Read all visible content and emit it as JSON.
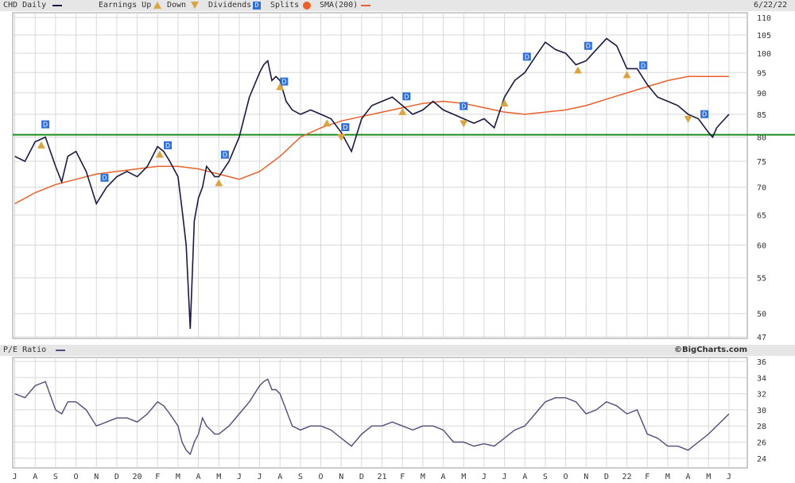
{
  "header": {
    "symbol_label": "CHD Daily",
    "earnings_up_label": "Earnings Up",
    "earnings_down_label": "Down",
    "dividends_label": "Dividends",
    "splits_label": "Splits",
    "sma_label": "SMA(200)",
    "date": "6/22/22"
  },
  "lower_header": {
    "label": "P/E Ratio",
    "copyright": "©BigCharts.com"
  },
  "colors": {
    "price_line": "#1a1a40",
    "sma_line": "#e8602a",
    "support_line": "#1a8c1a",
    "pe_line": "#4d4d7a",
    "dividend_marker": "#2f6fd6",
    "earnings_marker": "#d9a441",
    "grid": "#d8d8d8"
  },
  "chart_data": [
    {
      "type": "line",
      "title": "CHD Daily",
      "yscale": "log",
      "ylim": [
        47,
        110
      ],
      "yticks": [
        47,
        50,
        55,
        60,
        65,
        70,
        75,
        80,
        85,
        90,
        95,
        100,
        105,
        110
      ],
      "month_labels": [
        "J",
        "A",
        "S",
        "O",
        "N",
        "D",
        "20",
        "F",
        "M",
        "A",
        "M",
        "J",
        "J",
        "A",
        "S",
        "O",
        "N",
        "D",
        "21",
        "F",
        "M",
        "A",
        "M",
        "J",
        "J",
        "A",
        "S",
        "O",
        "N",
        "D",
        "22",
        "F",
        "M",
        "A",
        "M",
        "J"
      ],
      "grid": true,
      "series": [
        {
          "name": "CHD Daily",
          "x": [
            0,
            0.5,
            1,
            1.5,
            2,
            2.3,
            2.6,
            3,
            3.5,
            4,
            4.5,
            5,
            5.5,
            6,
            6.5,
            7,
            7.3,
            7.6,
            8,
            8.2,
            8.4,
            8.6,
            8.8,
            9,
            9.2,
            9.4,
            9.6,
            9.8,
            10,
            10.5,
            11,
            11.5,
            12,
            12.2,
            12.4,
            12.6,
            12.8,
            13,
            13.3,
            13.6,
            14,
            14.5,
            15,
            15.5,
            16,
            16.5,
            17,
            17.5,
            18,
            18.5,
            19,
            19.5,
            20,
            20.5,
            21,
            21.5,
            22,
            22.5,
            23,
            23.5,
            24,
            24.5,
            25,
            25.5,
            26,
            26.5,
            27,
            27.5,
            28,
            28.5,
            29,
            29.5,
            30,
            30.5,
            31,
            31.5,
            32,
            32.5,
            33,
            33.5,
            34,
            34.2,
            34.4,
            34.6,
            34.8,
            35
          ],
          "values": [
            76,
            75,
            79,
            80,
            74,
            71,
            76,
            77,
            73,
            67,
            70,
            72,
            73,
            72,
            74,
            78,
            77,
            75,
            72,
            66,
            60,
            48,
            64,
            68,
            70,
            74,
            73,
            72,
            72,
            75,
            80,
            89,
            95,
            97,
            98,
            93,
            94,
            93,
            88,
            86,
            85,
            86,
            85,
            84,
            81,
            77,
            84,
            87,
            88,
            89,
            87,
            85,
            86,
            88,
            86,
            85,
            84,
            83,
            84,
            82,
            89,
            93,
            95,
            99,
            103,
            101,
            100,
            97,
            98,
            101,
            104,
            102,
            96,
            96,
            92,
            89,
            88,
            87,
            85,
            84,
            81,
            80,
            82,
            83,
            84,
            85
          ]
        },
        {
          "name": "SMA(200)",
          "x": [
            0,
            1,
            2,
            3,
            4,
            5,
            6,
            7,
            8,
            9,
            10,
            11,
            12,
            13,
            14,
            15,
            16,
            17,
            18,
            19,
            20,
            21,
            22,
            23,
            24,
            25,
            26,
            27,
            28,
            29,
            30,
            31,
            32,
            33,
            34,
            35
          ],
          "values": [
            67,
            69,
            70.5,
            71.5,
            72.5,
            73,
            73.5,
            74,
            74,
            73.5,
            72.5,
            71.5,
            73,
            76,
            80,
            82,
            83.5,
            84.5,
            85.5,
            86.5,
            87.5,
            88,
            87.5,
            86.5,
            85.5,
            85,
            85.5,
            86,
            87,
            88.5,
            90,
            91.5,
            93,
            94,
            94,
            94
          ]
        },
        {
          "name": "Support level",
          "x": [
            0,
            35
          ],
          "values": [
            80.5,
            80.5
          ]
        }
      ],
      "dividends_x": [
        1.5,
        4.4,
        7.5,
        10.3,
        13.2,
        16.2,
        19.2,
        22,
        25.1,
        28.1,
        30.8,
        33.8
      ],
      "earnings_up_x": [
        1.3,
        7.1,
        10,
        13,
        15.3,
        19,
        24,
        27.6,
        30
      ],
      "earnings_down_x": [
        16,
        22,
        33
      ]
    },
    {
      "type": "line",
      "title": "P/E Ratio",
      "ylim": [
        23,
        36
      ],
      "yticks": [
        24,
        26,
        28,
        30,
        32,
        34,
        36
      ],
      "grid": true,
      "series": [
        {
          "name": "P/E Ratio",
          "x": [
            0,
            0.5,
            1,
            1.5,
            2,
            2.3,
            2.6,
            3,
            3.5,
            4,
            4.5,
            5,
            5.5,
            6,
            6.5,
            7,
            7.3,
            7.6,
            8,
            8.2,
            8.4,
            8.6,
            8.8,
            9,
            9.2,
            9.4,
            9.6,
            9.8,
            10,
            10.5,
            11,
            11.5,
            12,
            12.2,
            12.4,
            12.6,
            12.8,
            13,
            13.3,
            13.6,
            14,
            14.5,
            15,
            15.5,
            16,
            16.5,
            17,
            17.5,
            18,
            18.5,
            19,
            19.5,
            20,
            20.5,
            21,
            21.5,
            22,
            22.5,
            23,
            23.5,
            24,
            24.5,
            25,
            25.5,
            26,
            26.5,
            27,
            27.5,
            28,
            28.5,
            29,
            29.5,
            30,
            30.5,
            31,
            31.5,
            32,
            32.5,
            33,
            33.5,
            34,
            34.2,
            34.4,
            34.6,
            34.8,
            35
          ],
          "values": [
            32,
            31.5,
            33,
            33.5,
            30,
            29.5,
            31,
            31,
            30,
            28,
            28.5,
            29,
            29,
            28.5,
            29.5,
            31,
            30.5,
            29.5,
            28,
            26,
            25,
            24.5,
            26,
            27,
            29,
            28,
            27.5,
            27,
            27,
            28,
            29.5,
            31,
            33,
            33.5,
            33.8,
            32.5,
            32.5,
            32,
            30,
            28,
            27.5,
            28,
            28,
            27.5,
            26.5,
            25.5,
            27,
            28,
            28,
            28.5,
            28,
            27.5,
            28,
            28,
            27.5,
            26,
            26,
            25.5,
            25.8,
            25.5,
            26.5,
            27.5,
            28,
            29.5,
            31,
            31.5,
            31.5,
            31,
            29.5,
            30,
            31,
            30.5,
            29.5,
            30,
            27,
            26.5,
            25.5,
            25.5,
            25,
            26,
            27,
            27.5,
            28,
            28.5,
            29,
            29.5
          ]
        }
      ]
    }
  ]
}
